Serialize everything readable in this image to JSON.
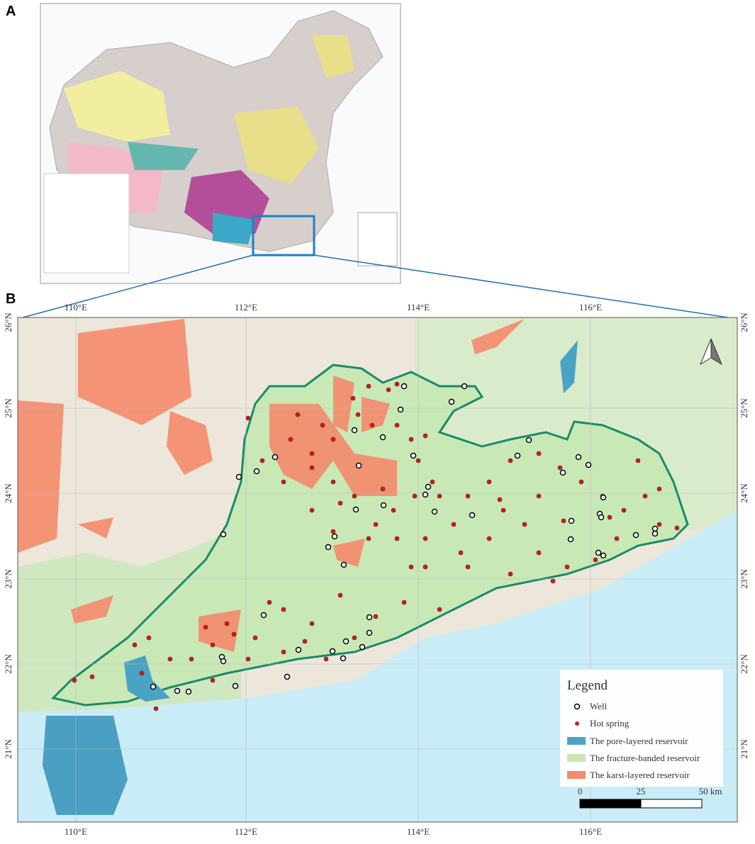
{
  "panel_a": {
    "label": "A"
  },
  "panel_b": {
    "label": "B",
    "longitude_labels": [
      "110°E",
      "112°E",
      "114°E",
      "116°E"
    ],
    "latitude_labels": [
      "26°N",
      "25°N",
      "24°N",
      "23°N",
      "22°N",
      "21°N"
    ],
    "legend": {
      "title": "Legend",
      "items": [
        "Well",
        "Hot spring",
        "The pore-layered reservoir",
        "The fracture-banded reservoir",
        "The karst-layered reservoir"
      ]
    },
    "scale_bar": [
      "0",
      "25",
      "50 km"
    ]
  }
}
